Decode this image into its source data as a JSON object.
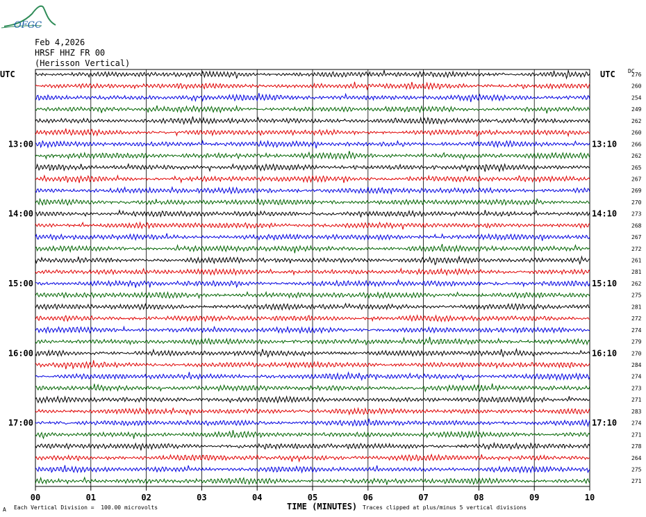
{
  "logo_text": "OFGC",
  "header": {
    "date": "Feb 4,2026",
    "station": "HRSF HHZ FR 00",
    "site": "(Herisson Vertical)"
  },
  "left_axis_label": "UTC",
  "right_axis_label": "UTC",
  "dc_label": "DC",
  "xlabel": "TIME (MINUTES)",
  "footer_left": "Each Vertical Division =  100.00 microvolts",
  "footer_right": "Traces clipped at plus/minus 5 vertical divisions",
  "footer_mark": "A",
  "colors": {
    "black": "#000000",
    "red": "#e00000",
    "blue": "#0000e0",
    "green": "#006400",
    "grid": "#000000"
  },
  "chart_data": {
    "type": "line",
    "title": "HRSF HHZ FR 00 (Herisson Vertical)",
    "xlabel": "TIME (MINUTES)",
    "xlim": [
      0,
      10
    ],
    "x_ticks": [
      "00",
      "01",
      "02",
      "03",
      "04",
      "05",
      "06",
      "07",
      "08",
      "09",
      "10"
    ],
    "row_minutes": 10,
    "trace_color_cycle": [
      "black",
      "red",
      "blue",
      "green"
    ],
    "left_time_labels": [
      {
        "row": 6,
        "text": "13:00"
      },
      {
        "row": 12,
        "text": "14:00"
      },
      {
        "row": 18,
        "text": "15:00"
      },
      {
        "row": 24,
        "text": "16:00"
      },
      {
        "row": 30,
        "text": "17:00"
      }
    ],
    "right_time_labels": [
      {
        "row": 6,
        "text": "13:10"
      },
      {
        "row": 12,
        "text": "14:10"
      },
      {
        "row": 18,
        "text": "15:10"
      },
      {
        "row": 24,
        "text": "16:10"
      },
      {
        "row": 30,
        "text": "17:10"
      }
    ],
    "dc_offsets": [
      276,
      260,
      254,
      249,
      262,
      260,
      266,
      262,
      265,
      267,
      269,
      270,
      273,
      268,
      267,
      272,
      261,
      281,
      262,
      275,
      281,
      272,
      274,
      279,
      270,
      284,
      274,
      273,
      271,
      283,
      274,
      271,
      278,
      264,
      275,
      271
    ],
    "vertical_division_microvolts": 100.0
  }
}
